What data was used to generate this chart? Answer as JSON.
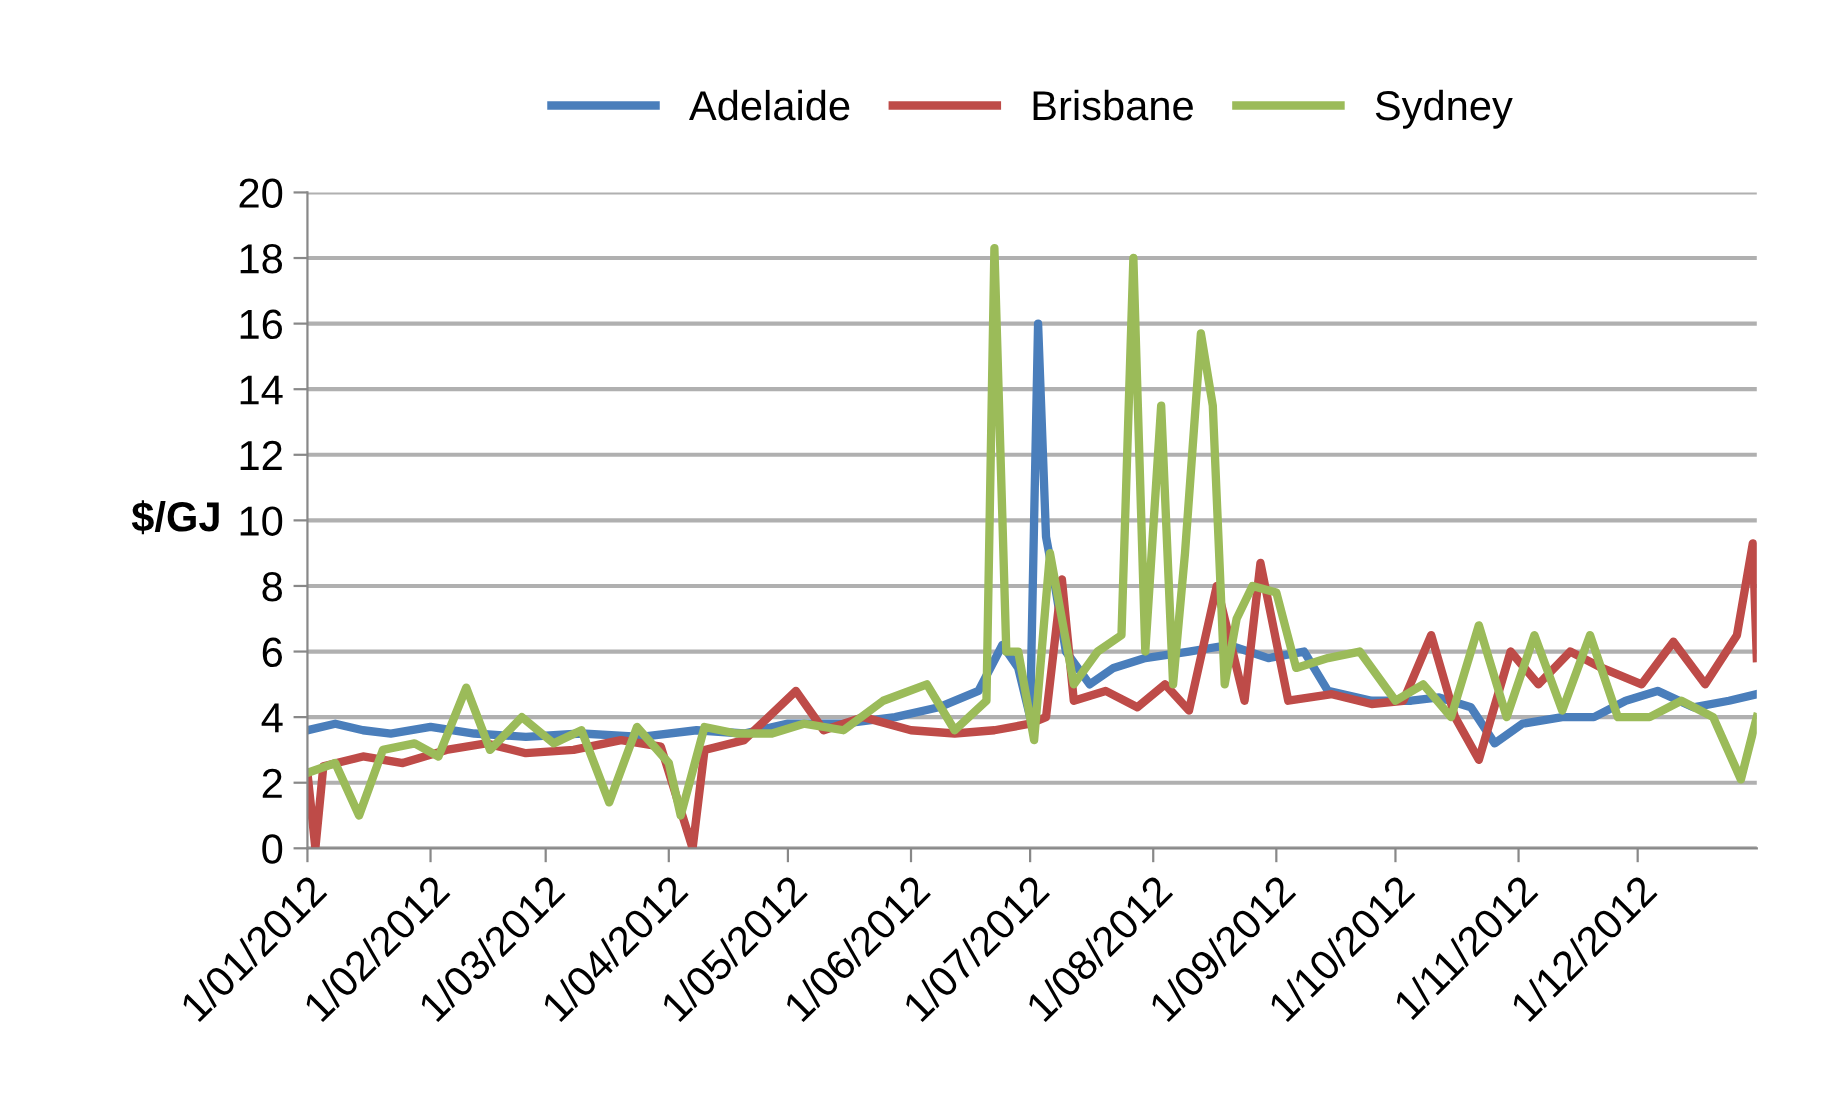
{
  "chart_data": {
    "type": "line",
    "ylabel": "$/GJ",
    "xlim": [
      "2012-01-01",
      "2012-12-31"
    ],
    "xticks": [
      {
        "value": "2012-01-01",
        "label": "1/01/2012"
      },
      {
        "value": "2012-02-01",
        "label": "1/02/2012"
      },
      {
        "value": "2012-03-01",
        "label": "1/03/2012"
      },
      {
        "value": "2012-04-01",
        "label": "1/04/2012"
      },
      {
        "value": "2012-05-01",
        "label": "1/05/2012"
      },
      {
        "value": "2012-06-01",
        "label": "1/06/2012"
      },
      {
        "value": "2012-07-01",
        "label": "1/07/2012"
      },
      {
        "value": "2012-08-01",
        "label": "1/08/2012"
      },
      {
        "value": "2012-09-01",
        "label": "1/09/2012"
      },
      {
        "value": "2012-10-01",
        "label": "1/10/2012"
      },
      {
        "value": "2012-11-01",
        "label": "1/11/2012"
      },
      {
        "value": "2012-12-01",
        "label": "1/12/2012"
      }
    ],
    "ylim": [
      0,
      20
    ],
    "yticks": [
      0,
      2,
      4,
      6,
      8,
      10,
      12,
      14,
      16,
      18,
      20
    ],
    "grid": "y",
    "legend": "top",
    "line_style": "solid",
    "marker": "none",
    "series": [
      {
        "name": "Adelaide",
        "color": "#4a7ebb",
        "x": [
          "2012-01-01",
          "2012-01-08",
          "2012-01-15",
          "2012-01-22",
          "2012-02-01",
          "2012-02-12",
          "2012-02-25",
          "2012-03-10",
          "2012-03-25",
          "2012-04-08",
          "2012-04-20",
          "2012-05-01",
          "2012-05-15",
          "2012-05-28",
          "2012-06-08",
          "2012-06-18",
          "2012-06-24",
          "2012-06-28",
          "2012-07-01",
          "2012-07-03",
          "2012-07-05",
          "2012-07-07",
          "2012-07-10",
          "2012-07-16",
          "2012-07-22",
          "2012-07-30",
          "2012-08-10",
          "2012-08-20",
          "2012-08-30",
          "2012-09-08",
          "2012-09-14",
          "2012-09-25",
          "2012-10-05",
          "2012-10-12",
          "2012-10-20",
          "2012-10-26",
          "2012-11-02",
          "2012-11-12",
          "2012-11-20",
          "2012-11-28",
          "2012-12-06",
          "2012-12-15",
          "2012-12-24",
          "2012-12-31"
        ],
        "values": [
          3.6,
          3.8,
          3.6,
          3.5,
          3.7,
          3.5,
          3.4,
          3.5,
          3.4,
          3.6,
          3.5,
          3.8,
          3.8,
          4.0,
          4.3,
          4.8,
          6.2,
          5.5,
          4.0,
          16.0,
          9.5,
          8.2,
          6.0,
          5.0,
          5.5,
          5.8,
          6.0,
          6.2,
          5.8,
          6.0,
          4.8,
          4.5,
          4.5,
          4.6,
          4.3,
          3.2,
          3.8,
          4.0,
          4.0,
          4.5,
          4.8,
          4.3,
          4.5,
          4.7
        ]
      },
      {
        "name": "Brisbane",
        "color": "#be4b48",
        "x": [
          "2012-01-01",
          "2012-01-03",
          "2012-01-05",
          "2012-01-15",
          "2012-01-25",
          "2012-02-05",
          "2012-02-15",
          "2012-02-25",
          "2012-03-08",
          "2012-03-20",
          "2012-03-30",
          "2012-04-07",
          "2012-04-10",
          "2012-04-20",
          "2012-05-03",
          "2012-05-10",
          "2012-05-20",
          "2012-06-01",
          "2012-06-12",
          "2012-06-22",
          "2012-07-01",
          "2012-07-05",
          "2012-07-09",
          "2012-07-12",
          "2012-07-20",
          "2012-07-28",
          "2012-08-04",
          "2012-08-10",
          "2012-08-17",
          "2012-08-24",
          "2012-08-28",
          "2012-09-04",
          "2012-09-15",
          "2012-09-25",
          "2012-10-03",
          "2012-10-10",
          "2012-10-16",
          "2012-10-22",
          "2012-10-30",
          "2012-11-06",
          "2012-11-14",
          "2012-11-22",
          "2012-12-02",
          "2012-12-10",
          "2012-12-18",
          "2012-12-26",
          "2012-12-30",
          "2012-12-31"
        ],
        "values": [
          2.3,
          0,
          2.5,
          2.8,
          2.6,
          3.0,
          3.2,
          2.9,
          3.0,
          3.3,
          3.1,
          0,
          3.0,
          3.3,
          4.8,
          3.6,
          4.0,
          3.6,
          3.5,
          3.6,
          3.8,
          4.0,
          8.2,
          4.5,
          4.8,
          4.3,
          5.0,
          4.2,
          8.0,
          4.5,
          8.7,
          4.5,
          4.7,
          4.4,
          4.5,
          6.5,
          4.0,
          2.7,
          6.0,
          5.0,
          6.0,
          5.5,
          5.0,
          6.3,
          5.0,
          6.5,
          9.3,
          5.8
        ]
      },
      {
        "name": "Sydney",
        "color": "#9bbb59",
        "x": [
          "2012-01-01",
          "2012-01-08",
          "2012-01-14",
          "2012-01-20",
          "2012-01-28",
          "2012-02-03",
          "2012-02-10",
          "2012-02-16",
          "2012-02-24",
          "2012-03-03",
          "2012-03-10",
          "2012-03-17",
          "2012-03-24",
          "2012-04-01",
          "2012-04-04",
          "2012-04-10",
          "2012-04-18",
          "2012-04-27",
          "2012-05-05",
          "2012-05-15",
          "2012-05-25",
          "2012-06-05",
          "2012-06-12",
          "2012-06-20",
          "2012-06-22",
          "2012-06-25",
          "2012-06-28",
          "2012-07-02",
          "2012-07-06",
          "2012-07-12",
          "2012-07-18",
          "2012-07-24",
          "2012-07-27",
          "2012-07-30",
          "2012-08-03",
          "2012-08-06",
          "2012-08-09",
          "2012-08-13",
          "2012-08-16",
          "2012-08-19",
          "2012-08-22",
          "2012-08-26",
          "2012-09-01",
          "2012-09-06",
          "2012-09-14",
          "2012-09-22",
          "2012-10-01",
          "2012-10-08",
          "2012-10-15",
          "2012-10-22",
          "2012-10-29",
          "2012-11-05",
          "2012-11-12",
          "2012-11-19",
          "2012-11-26",
          "2012-12-04",
          "2012-12-12",
          "2012-12-20",
          "2012-12-27",
          "2012-12-31"
        ],
        "values": [
          2.3,
          2.6,
          1.0,
          3.0,
          3.2,
          2.8,
          4.9,
          3.0,
          4.0,
          3.2,
          3.6,
          1.4,
          3.7,
          2.6,
          1.0,
          3.7,
          3.5,
          3.5,
          3.8,
          3.6,
          4.5,
          5.0,
          3.6,
          4.5,
          18.3,
          6.0,
          6.0,
          3.3,
          9.0,
          5.0,
          6.0,
          6.5,
          18.0,
          6.0,
          13.5,
          5.0,
          9.0,
          15.7,
          13.5,
          5.0,
          7.0,
          8.0,
          7.8,
          5.5,
          5.8,
          6.0,
          4.5,
          5.0,
          4.0,
          6.8,
          4.0,
          6.5,
          4.2,
          6.5,
          4.0,
          4.0,
          4.5,
          4.0,
          2.1,
          4.0
        ]
      }
    ]
  }
}
